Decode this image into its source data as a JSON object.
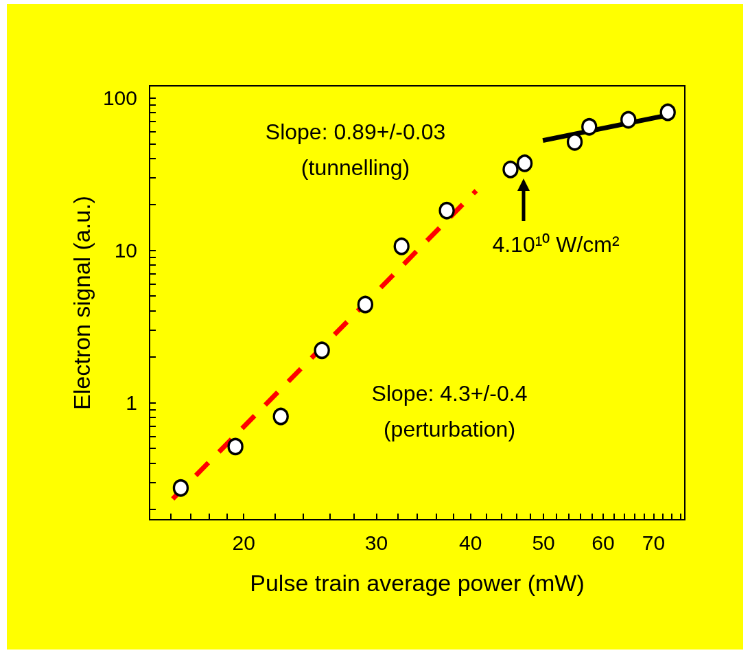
{
  "chart_data": {
    "type": "scatter",
    "xlabel": "Pulse train average power (mW)",
    "ylabel": "Electron signal (a.u.)",
    "log": "xy",
    "marker": "circle",
    "xlim": [
      15,
      77
    ],
    "xticks": [
      {
        "value": 16,
        "label": null
      },
      {
        "value": 17,
        "label": null
      },
      {
        "value": 18,
        "label": null
      },
      {
        "value": 19,
        "label": null
      },
      20,
      {
        "value": 22,
        "label": null
      },
      {
        "value": 24,
        "label": null
      },
      {
        "value": 26,
        "label": null
      },
      {
        "value": 28,
        "label": null
      },
      30,
      {
        "value": 32,
        "label": null
      },
      {
        "value": 34,
        "label": null
      },
      {
        "value": 36,
        "label": null
      },
      {
        "value": 38,
        "label": null
      },
      40,
      {
        "value": 42,
        "label": null
      },
      {
        "value": 44,
        "label": null
      },
      {
        "value": 46,
        "label": null
      },
      {
        "value": 48,
        "label": null
      },
      50,
      {
        "value": 52,
        "label": null
      },
      {
        "value": 54,
        "label": null
      },
      {
        "value": 56,
        "label": null
      },
      {
        "value": 58,
        "label": null
      },
      60,
      {
        "value": 62,
        "label": null
      },
      {
        "value": 64,
        "label": null
      },
      {
        "value": 66,
        "label": null
      },
      {
        "value": 68,
        "label": null
      },
      70,
      {
        "value": 72,
        "label": null
      },
      {
        "value": 74,
        "label": null
      },
      {
        "value": 76,
        "label": null
      }
    ],
    "ylim": [
      0.17,
      120
    ],
    "yticks": [
      {
        "value": 0.2,
        "label": null
      },
      {
        "value": 0.3,
        "label": null
      },
      {
        "value": 0.4,
        "label": null
      },
      {
        "value": 0.5,
        "label": null
      },
      {
        "value": 0.6,
        "label": null
      },
      {
        "value": 0.7,
        "label": null
      },
      {
        "value": 0.8,
        "label": null
      },
      {
        "value": 0.9,
        "label": null
      },
      1,
      {
        "value": 2,
        "label": null
      },
      {
        "value": 3,
        "label": null
      },
      {
        "value": 4,
        "label": null
      },
      {
        "value": 5,
        "label": null
      },
      {
        "value": 6,
        "label": null
      },
      {
        "value": 7,
        "label": null
      },
      {
        "value": 8,
        "label": null
      },
      {
        "value": 9,
        "label": null
      },
      10,
      {
        "value": 20,
        "label": null
      },
      {
        "value": 30,
        "label": null
      },
      {
        "value": 40,
        "label": null
      },
      {
        "value": 50,
        "label": null
      },
      {
        "value": 60,
        "label": null
      },
      {
        "value": 70,
        "label": null
      },
      {
        "value": 80,
        "label": null
      },
      {
        "value": 90,
        "label": null
      },
      100
    ],
    "series": [
      {
        "type": "line",
        "marker": "none",
        "color": "#ff0000",
        "line_style": "dashed",
        "x": [
          16.1,
          40.7
        ],
        "values": [
          0.233,
          24.6
        ]
      },
      {
        "type": "line",
        "marker": "none",
        "color": "#000000",
        "line_style": "solid",
        "x": [
          49.9,
          72.4
        ],
        "values": [
          52.5,
          76.3
        ]
      },
      {
        "color": "#ffffff",
        "x": [
          16.5,
          19.5,
          22.4,
          25.4,
          29.0,
          32.4,
          37.2,
          45.2,
          47.2,
          55.0,
          57.5,
          64.8,
          73.1
        ],
        "values": [
          0.275,
          0.514,
          0.81,
          2.2,
          4.4,
          10.6,
          18.2,
          33.9,
          37.2,
          51.4,
          64.6,
          71.8,
          80.4
        ]
      }
    ],
    "annotations": [
      "Slope: 0.89+/-0.03\n(tunnelling)",
      "Slope: 4.3+/-0.4\n(perturbation)",
      "4.10¹⁰ W/cm²"
    ]
  }
}
